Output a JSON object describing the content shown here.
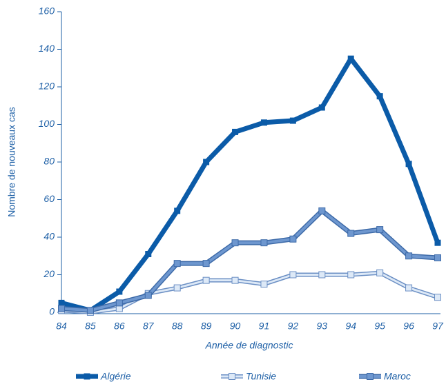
{
  "chart_data": {
    "type": "line",
    "ylabel": "Nombre de nouveaux cas",
    "xlabel": "Année de diagnostic",
    "categories": [
      "84",
      "85",
      "86",
      "87",
      "88",
      "89",
      "90",
      "91",
      "92",
      "93",
      "94",
      "95",
      "96",
      "97"
    ],
    "series": [
      {
        "name": "Algérie",
        "color": "#0b5ba8",
        "values": [
          5,
          1,
          11,
          31,
          54,
          80,
          96,
          101,
          102,
          109,
          135,
          115,
          79,
          37
        ]
      },
      {
        "name": "Tunisie",
        "color": "#dde9f7",
        "values": [
          1,
          0,
          2,
          10,
          13,
          17,
          17,
          15,
          20,
          20,
          20,
          21,
          13,
          8
        ]
      },
      {
        "name": "Maroc",
        "color": "#6e97cf",
        "values": [
          2,
          1,
          5,
          9,
          26,
          26,
          37,
          37,
          39,
          54,
          42,
          44,
          30,
          29
        ]
      }
    ],
    "ylim": [
      0,
      160
    ],
    "yticks": [
      0,
      20,
      40,
      60,
      80,
      100,
      120,
      140,
      160
    ]
  }
}
